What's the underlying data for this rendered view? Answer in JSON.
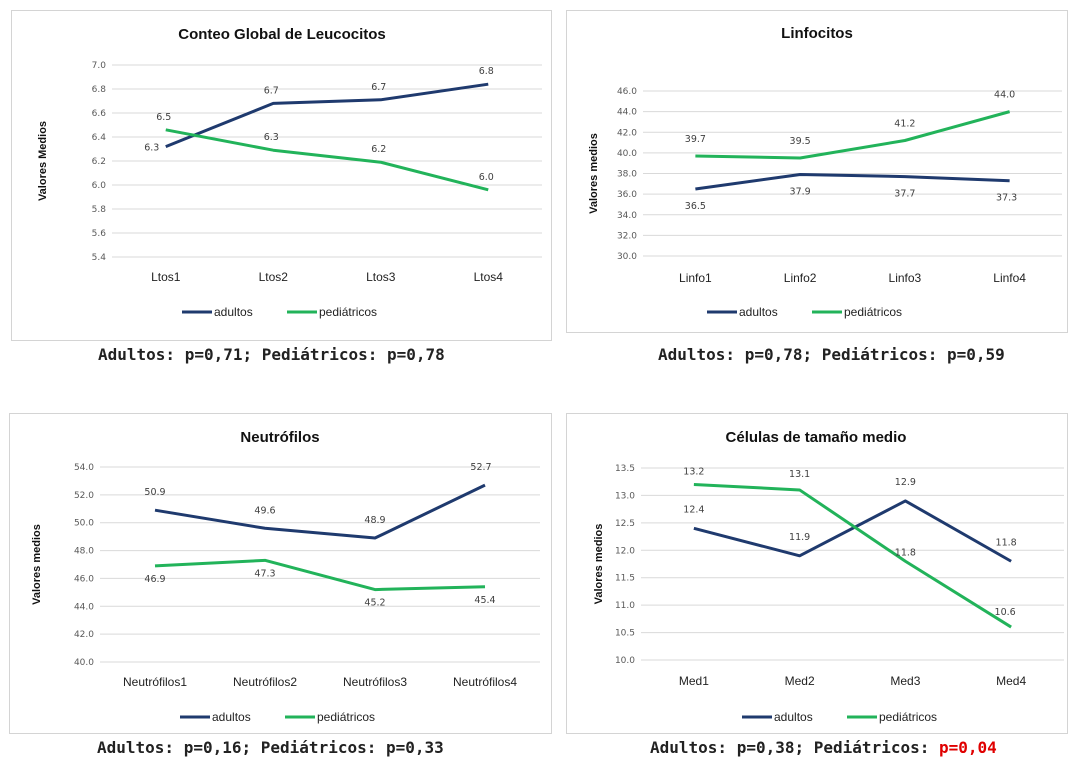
{
  "colors": {
    "adultos": "#1f3a6e",
    "pediatricos": "#22b35a"
  },
  "chart_data": [
    {
      "type": "line",
      "title": "Conteo Global de Leucocitos",
      "ylabel": "Valores Medios",
      "categories": [
        "Ltos1",
        "Ltos2",
        "Ltos3",
        "Ltos4"
      ],
      "ylim": [
        5.4,
        7.0
      ],
      "yticks": [
        "5.4",
        "5.6",
        "5.8",
        "6.0",
        "6.2",
        "6.4",
        "6.6",
        "6.8",
        "7.0"
      ],
      "series": [
        {
          "name": "adultos",
          "values": [
            6.3,
            6.7,
            6.7,
            6.8
          ],
          "labels": [
            "6.3",
            "6.7",
            "6.7",
            "6.8"
          ],
          "plot": [
            6.32,
            6.68,
            6.71,
            6.84
          ]
        },
        {
          "name": "pediátricos",
          "values": [
            6.5,
            6.3,
            6.2,
            6.0
          ],
          "labels": [
            "6.5",
            "6.3",
            "6.2",
            "6.0"
          ],
          "plot": [
            6.46,
            6.29,
            6.19,
            5.96
          ]
        }
      ],
      "caption": {
        "adults": "Adultos: p=0,71;",
        "peds": "Pediátricos: p=0,78"
      }
    },
    {
      "type": "line",
      "title": "Linfocitos",
      "ylabel": "Valores medios",
      "categories": [
        "Linfo1",
        "Linfo2",
        "Linfo3",
        "Linfo4"
      ],
      "ylim": [
        30,
        46
      ],
      "yticks": [
        "30.0",
        "32.0",
        "34.0",
        "36.0",
        "38.0",
        "40.0",
        "42.0",
        "44.0",
        "46.0"
      ],
      "series": [
        {
          "name": "adultos",
          "values": [
            36.5,
            37.9,
            37.7,
            37.3
          ],
          "labels": [
            "36.5",
            "37.9",
            "37.7",
            "37.3"
          ]
        },
        {
          "name": "pediátricos",
          "values": [
            39.7,
            39.5,
            41.2,
            44.0
          ],
          "labels": [
            "39.7",
            "39.5",
            "41.2",
            "44.0"
          ]
        }
      ],
      "caption": {
        "adults": "Adultos: p=0,78;",
        "peds": "Pediátricos: p=0,59"
      }
    },
    {
      "type": "line",
      "title": "Neutrófilos",
      "ylabel": "Valores medios",
      "categories": [
        "Neutrófilos1",
        "Neutrófilos2",
        "Neutrófilos3",
        "Neutrófilos4"
      ],
      "ylim": [
        40,
        54
      ],
      "yticks": [
        "40.0",
        "42.0",
        "44.0",
        "46.0",
        "48.0",
        "50.0",
        "52.0",
        "54.0"
      ],
      "series": [
        {
          "name": "adultos",
          "values": [
            50.9,
            49.6,
            48.9,
            52.7
          ],
          "labels": [
            "50.9",
            "49.6",
            "48.9",
            "52.7"
          ]
        },
        {
          "name": "pediátricos",
          "values": [
            46.9,
            47.3,
            45.2,
            45.4
          ],
          "labels": [
            "46.9",
            "47.3",
            "45.2",
            "45.4"
          ]
        }
      ],
      "caption": {
        "adults": "Adultos: p=0,16;",
        "peds": "Pediátricos: p=0,33"
      }
    },
    {
      "type": "line",
      "title": "Células de tamaño medio",
      "ylabel": "Valores medios",
      "categories": [
        "Med1",
        "Med2",
        "Med3",
        "Med4"
      ],
      "ylim": [
        10,
        13.5
      ],
      "yticks": [
        "10.0",
        "10.5",
        "11.0",
        "11.5",
        "12.0",
        "12.5",
        "13.0",
        "13.5"
      ],
      "series": [
        {
          "name": "adultos",
          "values": [
            12.4,
            11.9,
            12.9,
            11.8
          ],
          "labels": [
            "12.4",
            "11.9",
            "12.9",
            "11.8"
          ]
        },
        {
          "name": "pediátricos",
          "values": [
            13.2,
            13.1,
            11.8,
            10.6
          ],
          "labels": [
            "13.2",
            "13.1",
            "11.8",
            "10.6"
          ]
        }
      ],
      "caption": {
        "adults": "Adultos: p=0,38;",
        "peds": "Pediátricos:",
        "peds_highlight": "p=0,04"
      }
    }
  ]
}
